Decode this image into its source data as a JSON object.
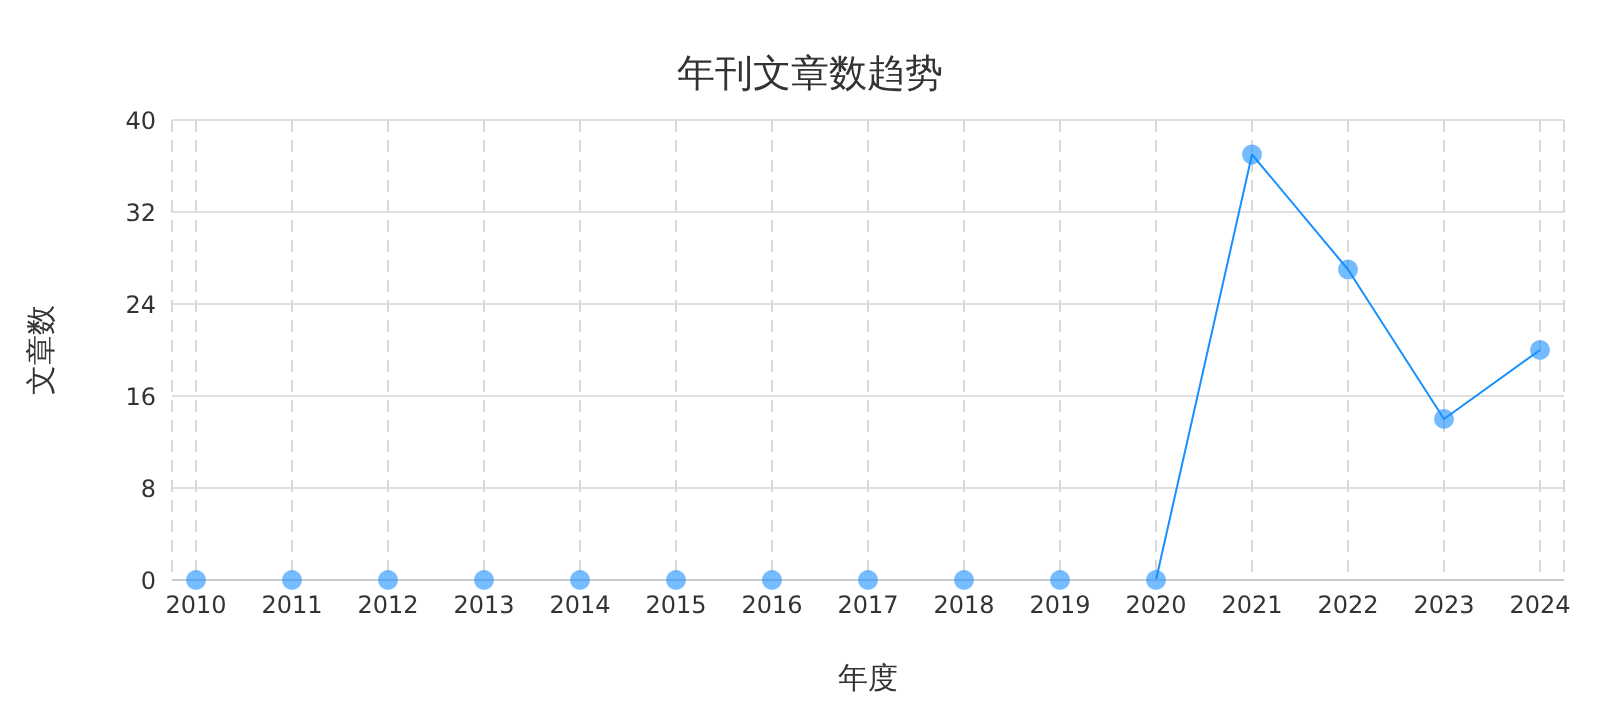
{
  "chart_data": {
    "type": "line",
    "title": "年刊文章数趋势",
    "xlabel": "年度",
    "ylabel": "文章数",
    "categories": [
      "2010",
      "2011",
      "2012",
      "2013",
      "2014",
      "2015",
      "2016",
      "2017",
      "2018",
      "2019",
      "2020",
      "2021",
      "2022",
      "2023",
      "2024"
    ],
    "series": [
      {
        "color": "#1890ff",
        "values": [
          0,
          0,
          0,
          0,
          0,
          0,
          0,
          0,
          0,
          0,
          0,
          37,
          27,
          14,
          20
        ]
      }
    ],
    "ylim": [
      0,
      40
    ],
    "yticks": [
      0,
      8,
      16,
      24,
      32,
      40
    ],
    "grid": true,
    "marker": "circle",
    "line_style": "solid"
  }
}
